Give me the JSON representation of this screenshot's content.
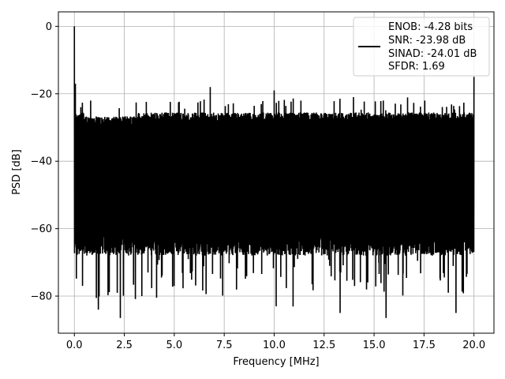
{
  "chart_data": {
    "type": "line",
    "title": "",
    "xlabel": "Frequency [MHz]",
    "ylabel": "PSD [dB]",
    "xlim": [
      -0.8,
      21.0
    ],
    "ylim": [
      -91,
      4.3
    ],
    "x_ticks": [
      0.0,
      2.5,
      5.0,
      7.5,
      10.0,
      12.5,
      15.0,
      17.5,
      20.0
    ],
    "x_tick_labels": [
      "0.0",
      "2.5",
      "5.0",
      "7.5",
      "10.0",
      "12.5",
      "15.0",
      "17.5",
      "20.0"
    ],
    "y_ticks": [
      0,
      -20,
      -40,
      -60,
      -80
    ],
    "y_tick_labels": [
      "0",
      "−20",
      "−40",
      "−60",
      "−80"
    ],
    "grid": true,
    "legend_position": "top-right",
    "legend_entries": [
      "ENOB: -4.28 bits",
      "SNR: -23.98 dB",
      "SINAD: -24.01 dB",
      "SFDR: 1.69"
    ],
    "series": [
      {
        "color": "#000000",
        "description": "dense noise floor between about -65 and -27 dB across 0–20 MHz, peaks reaching about -22 dB, dips to about -86 dB",
        "x_range": [
          0,
          20
        ],
        "peaks": [
          {
            "x": 0.0,
            "y": 0.0
          },
          {
            "x": 0.05,
            "y": -17
          },
          {
            "x": 6.8,
            "y": -18
          },
          {
            "x": 10.0,
            "y": -19
          },
          {
            "x": 20.0,
            "y": -15
          }
        ],
        "deep_dips": [
          {
            "x": 1.2,
            "y": -84
          },
          {
            "x": 2.3,
            "y": -86.5
          },
          {
            "x": 10.1,
            "y": -83
          },
          {
            "x": 13.3,
            "y": -85
          },
          {
            "x": 15.6,
            "y": -86.5
          },
          {
            "x": 19.1,
            "y": -85
          }
        ]
      }
    ]
  }
}
